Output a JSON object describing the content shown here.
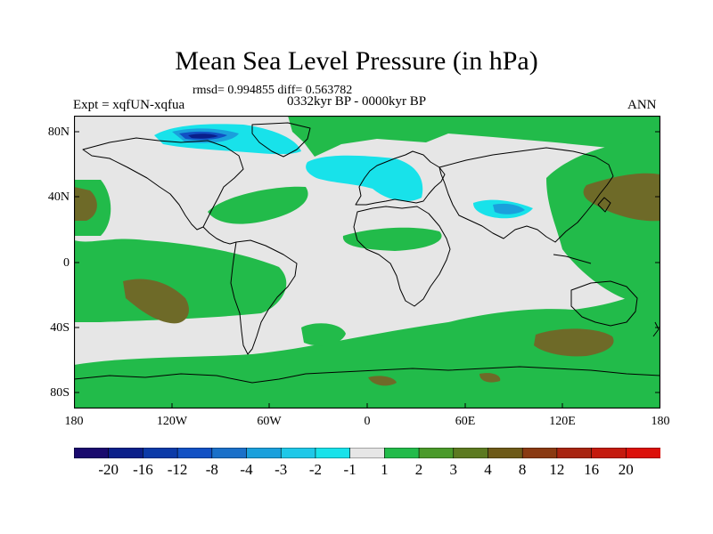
{
  "header": {
    "title": "Mean Sea Level Pressure (in hPa)",
    "stats": "rmsd= 0.994855 diff= 0.563782",
    "experiment": "Expt = xqfUN-xqfua",
    "period": "0332kyr BP - 0000kyr BP",
    "season": "ANN"
  },
  "axes": {
    "y_labels": [
      "80N",
      "40N",
      "0",
      "40S",
      "80S"
    ],
    "x_labels": [
      "180",
      "120W",
      "60W",
      "0",
      "60E",
      "120E",
      "180"
    ]
  },
  "colorbar": {
    "labels": [
      "-20",
      "-16",
      "-12",
      "-8",
      "-4",
      "-3",
      "-2",
      "-1",
      "1",
      "2",
      "3",
      "4",
      "8",
      "12",
      "16",
      "20"
    ],
    "colors": [
      "#1a0a6e",
      "#0a1f8a",
      "#0b3aa8",
      "#1150c4",
      "#1a70c9",
      "#1aa0dc",
      "#1ec8e8",
      "#18e2ea",
      "#e6e6e6",
      "#22bb4a",
      "#4a9a2a",
      "#5c7a20",
      "#6e5a18",
      "#8a3a12",
      "#a82410",
      "#c41a0e",
      "#dc100a"
    ]
  },
  "palette": {
    "ocean_bg": "#e6e6e6",
    "positive_1": "#22bb4a",
    "positive_2": "#4a9a2a",
    "positive_3": "#5c7a20",
    "negative_1": "#18e2ea",
    "negative_2": "#1aa0dc",
    "negative_3": "#1150c4",
    "negative_4": "#0a1f8a"
  }
}
